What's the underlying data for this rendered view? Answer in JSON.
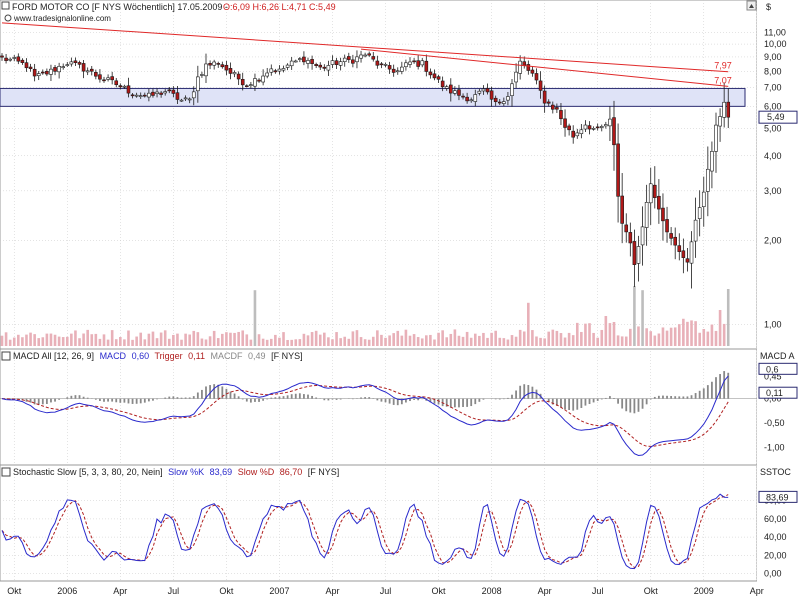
{
  "header": {
    "title": "FORD MOTOR CO [F NYS  Wöchentlich] 17.05.2009 - ",
    "ohlc": "O:6,09 H:6,26 L:4,71 C:5,49",
    "source": "www.tradesignalonline.com",
    "currency_label": "$"
  },
  "colors": {
    "bull": "#ffffff",
    "bear": "#b01818",
    "candle_outline": "#1a1a1a",
    "volume": "#e8b0b8",
    "volume_neutral": "#bdbdbd",
    "zone_fill": "#dfe3f7",
    "zone_border": "#2a2a70",
    "trendline": "#e02828",
    "macd": "#2a2acc",
    "trigger": "#b02020",
    "histogram": "#888888",
    "slow_k": "#2a2acc",
    "slow_d": "#b02020",
    "grid": "#c8c8c8",
    "axis_text": "#222222",
    "price_marker": "#2a2a70"
  },
  "chart_data": [
    {
      "type": "candlestick",
      "name": "price",
      "title": "FORD MOTOR CO [F NYS Wöchentlich] 17.05.2009",
      "scale": "log",
      "ylim": [
        0.84,
        12.8
      ],
      "y_ticks": [
        {
          "value": 11.0,
          "label": "11,00"
        },
        {
          "value": 10.0,
          "label": "10,00"
        },
        {
          "value": 9.0,
          "label": "9,00"
        },
        {
          "value": 8.0,
          "label": "8,00"
        },
        {
          "value": 7.0,
          "label": "7,00"
        },
        {
          "value": 6.0,
          "label": "6,00"
        },
        {
          "value": 5.0,
          "label": "5,00"
        },
        {
          "value": 4.0,
          "label": "4,00"
        },
        {
          "value": 3.0,
          "label": "3,00"
        },
        {
          "value": 2.0,
          "label": "2,00"
        },
        {
          "value": 1.0,
          "label": "1,00"
        }
      ],
      "last_close": 5.49,
      "last_close_label": "5,49",
      "zone": {
        "low": 6.0,
        "high": 6.95
      },
      "trendlines": [
        {
          "label": "7,97",
          "start": {
            "week": 0,
            "price": 11.9
          },
          "end": {
            "week": 178,
            "price": 7.97
          }
        },
        {
          "label": "7,07",
          "start": {
            "week": 88,
            "price": 9.6
          },
          "end": {
            "week": 178,
            "price": 7.07
          }
        }
      ],
      "anchors": [
        [
          0,
          8.9
        ],
        [
          3,
          8.7
        ],
        [
          6,
          8.4
        ],
        [
          8,
          7.6
        ],
        [
          12,
          8.0
        ],
        [
          16,
          8.6
        ],
        [
          20,
          8.2
        ],
        [
          24,
          7.6
        ],
        [
          28,
          7.2
        ],
        [
          32,
          6.7
        ],
        [
          36,
          6.5
        ],
        [
          40,
          6.8
        ],
        [
          44,
          6.3
        ],
        [
          46,
          6.3
        ],
        [
          48,
          7.6
        ],
        [
          50,
          8.4
        ],
        [
          53,
          8.6
        ],
        [
          56,
          7.9
        ],
        [
          60,
          7.2
        ],
        [
          63,
          7.6
        ],
        [
          66,
          8.2
        ],
        [
          68,
          8.0
        ],
        [
          70,
          8.4
        ],
        [
          74,
          8.9
        ],
        [
          78,
          8.2
        ],
        [
          82,
          8.6
        ],
        [
          86,
          8.8
        ],
        [
          89,
          9.2
        ],
        [
          93,
          8.3
        ],
        [
          97,
          8.0
        ],
        [
          100,
          8.6
        ],
        [
          103,
          8.5
        ],
        [
          106,
          7.6
        ],
        [
          109,
          6.9
        ],
        [
          112,
          6.6
        ],
        [
          115,
          6.4
        ],
        [
          118,
          6.8
        ],
        [
          121,
          6.1
        ],
        [
          124,
          6.6
        ],
        [
          127,
          8.6
        ],
        [
          130,
          7.8
        ],
        [
          133,
          6.3
        ],
        [
          136,
          5.8
        ],
        [
          138,
          5.1
        ],
        [
          140,
          4.7
        ],
        [
          143,
          5.2
        ],
        [
          146,
          4.9
        ],
        [
          149,
          5.3
        ],
        [
          150,
          4.3
        ],
        [
          151,
          2.9
        ],
        [
          152,
          2.3
        ],
        [
          154,
          2.0
        ],
        [
          155,
          1.6
        ],
        [
          157,
          2.3
        ],
        [
          159,
          3.2
        ],
        [
          162,
          2.4
        ],
        [
          164,
          2.0
        ],
        [
          166,
          1.8
        ],
        [
          168,
          1.7
        ],
        [
          170,
          2.3
        ],
        [
          173,
          3.5
        ],
        [
          175,
          5.0
        ],
        [
          177,
          6.3
        ],
        [
          178,
          5.49
        ]
      ],
      "volume": {
        "spikes": [
          [
            62,
            0.93
          ],
          [
            155,
            1.0
          ],
          [
            157,
            0.93
          ],
          [
            178,
            0.95
          ],
          [
            129,
            0.72
          ],
          [
            176,
            0.6
          ],
          [
            148,
            0.5
          ]
        ]
      }
    },
    {
      "type": "line",
      "name": "macd",
      "title": "MACD All [12, 26, 9]",
      "legend": [
        {
          "label": "MACD",
          "value": "0,60"
        },
        {
          "label": "Trigger",
          "value": "0,11"
        },
        {
          "label": "MACDF",
          "value": "0,49"
        }
      ],
      "suffix": "[F NYS]",
      "ylim": [
        -1.3,
        0.75
      ],
      "y_ticks": [
        {
          "value": 0.6,
          "label": "0,6"
        },
        {
          "value": 0.45,
          "label": "0,45"
        },
        {
          "value": 0.0,
          "label": "0,00"
        },
        {
          "value": -0.5,
          "label": "-0,50"
        },
        {
          "value": -1.0,
          "label": "-1,00"
        }
      ],
      "last_values": {
        "macd": "0,6",
        "trigger": "0,11"
      },
      "axis_label": "MACD A"
    },
    {
      "type": "line",
      "name": "stochastic",
      "title": "Stochastic Slow [5, 3, 3, 80, 20, Nein]",
      "legend": [
        {
          "label": "Slow %K",
          "value": "83,69"
        },
        {
          "label": "Slow %D",
          "value": "86,70"
        }
      ],
      "suffix": "[F NYS]",
      "ylim": [
        -5,
        105
      ],
      "y_ticks": [
        {
          "value": 80,
          "label": "80,00"
        },
        {
          "value": 60,
          "label": "60,00"
        },
        {
          "value": 40,
          "label": "40,00"
        },
        {
          "value": 20,
          "label": "20,00"
        },
        {
          "value": 0,
          "label": "0,00"
        }
      ],
      "last_value": "83,69",
      "axis_label": "SSTOC"
    }
  ],
  "x_axis": {
    "ticks": [
      {
        "week": 3,
        "label": "Okt"
      },
      {
        "week": 16,
        "label": "2006"
      },
      {
        "week": 29,
        "label": "Apr"
      },
      {
        "week": 42,
        "label": "Jul"
      },
      {
        "week": 55,
        "label": "Okt"
      },
      {
        "week": 68,
        "label": "2007"
      },
      {
        "week": 81,
        "label": "Apr"
      },
      {
        "week": 94,
        "label": "Jul"
      },
      {
        "week": 107,
        "label": "Okt"
      },
      {
        "week": 120,
        "label": "2008"
      },
      {
        "week": 133,
        "label": "Apr"
      },
      {
        "week": 146,
        "label": "Jul"
      },
      {
        "week": 159,
        "label": "Okt"
      },
      {
        "week": 172,
        "label": "2009"
      },
      {
        "week": 185,
        "label": "Apr"
      }
    ]
  }
}
